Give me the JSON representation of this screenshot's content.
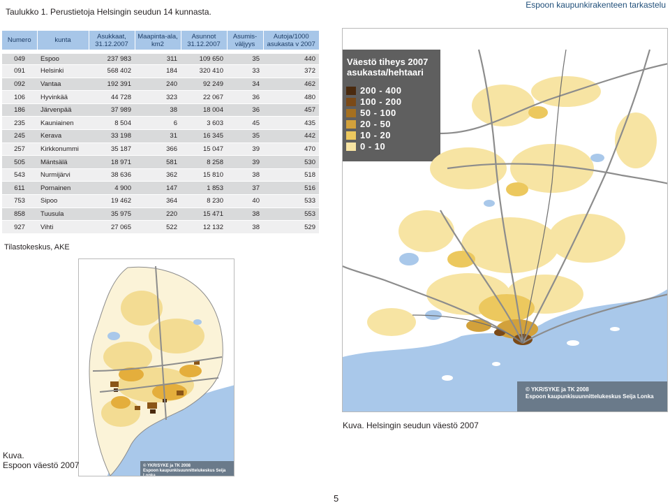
{
  "header": {
    "title": "Taulukko 1. Perustietoja Helsingin seudun 14 kunnasta.",
    "right": "Espoon kaupunkirakenteen tarkastelu"
  },
  "table": {
    "columns": [
      "Numero",
      "kunta",
      "Asukkaat, 31.12.2007",
      "Maapinta-ala, km2",
      "Asunnot 31.12.2007",
      "Asumis-väljyys",
      "Autoja/1000 asukasta v 2007"
    ],
    "rows": [
      [
        "049",
        "Espoo",
        "237 983",
        "311",
        "109 650",
        "35",
        "440"
      ],
      [
        "091",
        "Helsinki",
        "568 402",
        "184",
        "320 410",
        "33",
        "372"
      ],
      [
        "092",
        "Vantaa",
        "192 391",
        "240",
        "92 249",
        "34",
        "462"
      ],
      [
        "106",
        "Hyvinkää",
        "44 728",
        "323",
        "22 067",
        "36",
        "480"
      ],
      [
        "186",
        "Järvenpää",
        "37 989",
        "38",
        "18 004",
        "36",
        "457"
      ],
      [
        "235",
        "Kauniainen",
        "8 504",
        "6",
        "3 603",
        "45",
        "435"
      ],
      [
        "245",
        "Kerava",
        "33 198",
        "31",
        "16 345",
        "35",
        "442"
      ],
      [
        "257",
        "Kirkkonummi",
        "35 187",
        "366",
        "15 047",
        "39",
        "470"
      ],
      [
        "505",
        "Mäntsälä",
        "18 971",
        "581",
        "8 258",
        "39",
        "530"
      ],
      [
        "543",
        "Nurmijärvi",
        "38 636",
        "362",
        "15 810",
        "38",
        "518"
      ],
      [
        "611",
        "Pornainen",
        "4 900",
        "147",
        "1 853",
        "37",
        "516"
      ],
      [
        "753",
        "Sipoo",
        "19 462",
        "364",
        "8 230",
        "40",
        "533"
      ],
      [
        "858",
        "Tuusula",
        "35 975",
        "220",
        "15 471",
        "38",
        "553"
      ],
      [
        "927",
        "Vihti",
        "27 065",
        "522",
        "12 132",
        "38",
        "529"
      ]
    ]
  },
  "source": "Tilastokeskus, AKE",
  "map_right": {
    "legend_title_1": "Väestö tiheys 2007",
    "legend_title_2": "asukasta/hehtaari",
    "legend": [
      {
        "label": "200 - 400",
        "color": "#4a2a0e"
      },
      {
        "label": "100 - 200",
        "color": "#7b4a17"
      },
      {
        "label": "50 - 100",
        "color": "#a5701f"
      },
      {
        "label": "20 - 50",
        "color": "#d2a13b"
      },
      {
        "label": "10 - 20",
        "color": "#ecc85e"
      },
      {
        "label": "0 - 10",
        "color": "#f7e4a3"
      }
    ],
    "credit_1": "© YKR/SYKE ja TK 2008",
    "credit_2": "Espoon kaupunkisuunnittelukeskus Seija Lonka",
    "caption": "Kuva. Helsingin seudun väestö 2007"
  },
  "map_left": {
    "credit_1": "© YKR/SYKE ja TK 2008",
    "credit_2": "Espoon kaupunkisuunnittelukeskus Seija Lonka",
    "caption_1": "Kuva.",
    "caption_2": "Espoon väestö 2007"
  },
  "page_number": "5",
  "colors": {
    "header_bg": "#a7c6e8",
    "row_odd": "#d9dadb",
    "row_even": "#efeff0",
    "water": "#a9c8ea",
    "map_dark_bg": "#5f5f5f"
  }
}
